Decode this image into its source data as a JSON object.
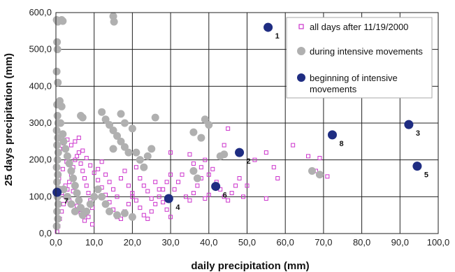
{
  "chart_data": {
    "type": "scatter",
    "xlabel": "daily precipitation (mm)",
    "ylabel": "25 days precipitation (mm)",
    "xlim": [
      0,
      100
    ],
    "ylim": [
      0,
      600
    ],
    "x_ticks": [
      "0,0",
      "10,0",
      "20,0",
      "30,0",
      "40,0",
      "50,0",
      "60,0",
      "70,0",
      "80,0",
      "90,0",
      "100,0"
    ],
    "y_ticks": [
      "0,0",
      "100,0",
      "200,0",
      "300,0",
      "400,0",
      "500,0",
      "600,0"
    ],
    "grid": true,
    "legend_position": "top-right",
    "colors": {
      "all_days": "#cc33cc",
      "intensive": "#b0b0b0",
      "beginning": "#1f2d82"
    },
    "series": [
      {
        "name": "all days after 11/19/2000",
        "marker": "open-square",
        "points": [
          [
            0.3,
            5
          ],
          [
            0.6,
            20
          ],
          [
            1,
            40
          ],
          [
            1.5,
            60
          ],
          [
            2,
            80
          ],
          [
            2.5,
            100
          ],
          [
            3,
            120
          ],
          [
            3.5,
            140
          ],
          [
            4,
            160
          ],
          [
            4.5,
            180
          ],
          [
            5,
            200
          ],
          [
            5.5,
            210
          ],
          [
            6,
            220
          ],
          [
            6.5,
            190
          ],
          [
            7,
            170
          ],
          [
            7.5,
            150
          ],
          [
            8,
            130
          ],
          [
            8.5,
            110
          ],
          [
            9,
            90
          ],
          [
            9.5,
            70
          ],
          [
            1,
            230
          ],
          [
            2,
            245
          ],
          [
            3,
            255
          ],
          [
            4,
            240
          ],
          [
            5,
            250
          ],
          [
            6,
            260
          ],
          [
            7,
            225
          ],
          [
            8,
            205
          ],
          [
            9,
            185
          ],
          [
            10,
            165
          ],
          [
            11,
            145
          ],
          [
            12,
            125
          ],
          [
            13,
            105
          ],
          [
            14,
            85
          ],
          [
            15,
            65
          ],
          [
            16,
            45
          ],
          [
            17,
            40
          ],
          [
            18,
            60
          ],
          [
            19,
            80
          ],
          [
            20,
            100
          ],
          [
            11,
            175
          ],
          [
            12,
            195
          ],
          [
            13,
            160
          ],
          [
            14,
            140
          ],
          [
            15,
            120
          ],
          [
            16,
            100
          ],
          [
            17,
            150
          ],
          [
            18,
            170
          ],
          [
            19,
            130
          ],
          [
            20,
            110
          ],
          [
            21,
            90
          ],
          [
            22,
            70
          ],
          [
            23,
            50
          ],
          [
            24,
            40
          ],
          [
            25,
            60
          ],
          [
            26,
            80
          ],
          [
            27,
            100
          ],
          [
            28,
            120
          ],
          [
            29,
            140
          ],
          [
            30,
            160
          ],
          [
            21,
            180
          ],
          [
            22,
            150
          ],
          [
            23,
            130
          ],
          [
            24,
            115
          ],
          [
            25,
            95
          ],
          [
            26,
            140
          ],
          [
            27,
            120
          ],
          [
            28,
            85
          ],
          [
            29,
            65
          ],
          [
            30,
            45
          ],
          [
            31,
            120
          ],
          [
            32,
            140
          ],
          [
            33,
            160
          ],
          [
            34,
            100
          ],
          [
            35,
            90
          ],
          [
            36,
            110
          ],
          [
            37,
            130
          ],
          [
            38,
            150
          ],
          [
            39,
            95
          ],
          [
            40,
            105
          ],
          [
            30,
            220
          ],
          [
            35,
            215
          ],
          [
            38,
            180
          ],
          [
            40,
            160
          ],
          [
            42,
            140
          ],
          [
            43,
            120
          ],
          [
            44,
            100
          ],
          [
            45,
            90
          ],
          [
            46,
            110
          ],
          [
            47,
            130
          ],
          [
            36,
            190
          ],
          [
            39,
            200
          ],
          [
            41,
            175
          ],
          [
            44,
            240
          ],
          [
            45,
            285
          ],
          [
            48,
            150
          ],
          [
            49,
            100
          ],
          [
            50,
            130
          ],
          [
            52,
            200
          ],
          [
            55,
            220
          ],
          [
            55,
            95
          ],
          [
            57,
            180
          ],
          [
            58,
            150
          ],
          [
            62,
            240
          ],
          [
            66,
            210
          ],
          [
            68,
            170
          ],
          [
            69,
            205
          ],
          [
            71,
            155
          ],
          [
            1.5,
            110
          ],
          [
            2.5,
            130
          ],
          [
            3.5,
            90
          ],
          [
            4.5,
            115
          ],
          [
            5.5,
            75
          ],
          [
            6.5,
            55
          ],
          [
            7.5,
            35
          ],
          [
            8.5,
            45
          ],
          [
            9.5,
            25
          ],
          [
            0.8,
            150
          ],
          [
            1.8,
            175
          ],
          [
            2.8,
            195
          ]
        ]
      },
      {
        "name": "during intensive movements",
        "marker": "filled-circle",
        "points": [
          [
            0.2,
            580
          ],
          [
            0.5,
            575
          ],
          [
            0.3,
            520
          ],
          [
            0.4,
            500
          ],
          [
            0.2,
            440
          ],
          [
            0.5,
            410
          ],
          [
            0.3,
            350
          ],
          [
            0.4,
            320
          ],
          [
            0.6,
            300
          ],
          [
            0.2,
            280
          ],
          [
            0.5,
            260
          ],
          [
            0.3,
            240
          ],
          [
            0.6,
            220
          ],
          [
            0.4,
            200
          ],
          [
            0.2,
            180
          ],
          [
            0.5,
            160
          ],
          [
            0.3,
            140
          ],
          [
            0.7,
            120
          ],
          [
            0.4,
            100
          ],
          [
            0.6,
            80
          ],
          [
            0.3,
            60
          ],
          [
            0.5,
            40
          ],
          [
            0.2,
            20
          ],
          [
            1,
            360
          ],
          [
            1.5,
            345
          ],
          [
            1.2,
            300
          ],
          [
            1.8,
            270
          ],
          [
            2,
            250
          ],
          [
            2.5,
            230
          ],
          [
            3,
            210
          ],
          [
            3.5,
            190
          ],
          [
            4,
            170
          ],
          [
            4.5,
            150
          ],
          [
            5,
            130
          ],
          [
            5.5,
            110
          ],
          [
            6,
            90
          ],
          [
            6.5,
            70
          ],
          [
            7,
            50
          ],
          [
            2,
            120
          ],
          [
            3,
            100
          ],
          [
            4,
            80
          ],
          [
            5,
            60
          ],
          [
            1.5,
            580
          ],
          [
            1.8,
            577
          ],
          [
            6.5,
            320
          ],
          [
            7,
            315
          ],
          [
            12,
            330
          ],
          [
            13,
            310
          ],
          [
            14,
            295
          ],
          [
            15,
            280
          ],
          [
            16,
            265
          ],
          [
            17,
            250
          ],
          [
            18,
            235
          ],
          [
            19,
            220
          ],
          [
            15,
            590
          ],
          [
            15.2,
            575
          ],
          [
            15,
            230
          ],
          [
            17,
            325
          ],
          [
            18,
            300
          ],
          [
            20,
            285
          ],
          [
            21,
            220
          ],
          [
            22,
            200
          ],
          [
            23,
            180
          ],
          [
            24,
            210
          ],
          [
            25,
            230
          ],
          [
            26,
            315
          ],
          [
            12,
            100
          ],
          [
            13,
            80
          ],
          [
            14,
            60
          ],
          [
            16,
            50
          ],
          [
            18,
            55
          ],
          [
            20,
            45
          ],
          [
            8,
            60
          ],
          [
            9,
            80
          ],
          [
            10,
            100
          ],
          [
            11,
            120
          ],
          [
            36,
            275
          ],
          [
            38,
            260
          ],
          [
            39,
            310
          ],
          [
            40,
            295
          ],
          [
            43,
            210
          ],
          [
            44,
            215
          ],
          [
            36,
            170
          ],
          [
            37,
            150
          ],
          [
            67,
            170
          ],
          [
            69,
            160
          ]
        ]
      },
      {
        "name": "beginning of intensive movements",
        "marker": "filled-circle-large",
        "points": [
          [
            55.5,
            560
          ],
          [
            92.3,
            296
          ],
          [
            94.5,
            183
          ],
          [
            72.3,
            268
          ],
          [
            48,
            220
          ],
          [
            41.8,
            128
          ],
          [
            29.5,
            95
          ],
          [
            0.3,
            112
          ]
        ],
        "labels": [
          "1",
          "3",
          "5",
          "8",
          "2",
          "6",
          "4",
          "7"
        ]
      }
    ]
  }
}
